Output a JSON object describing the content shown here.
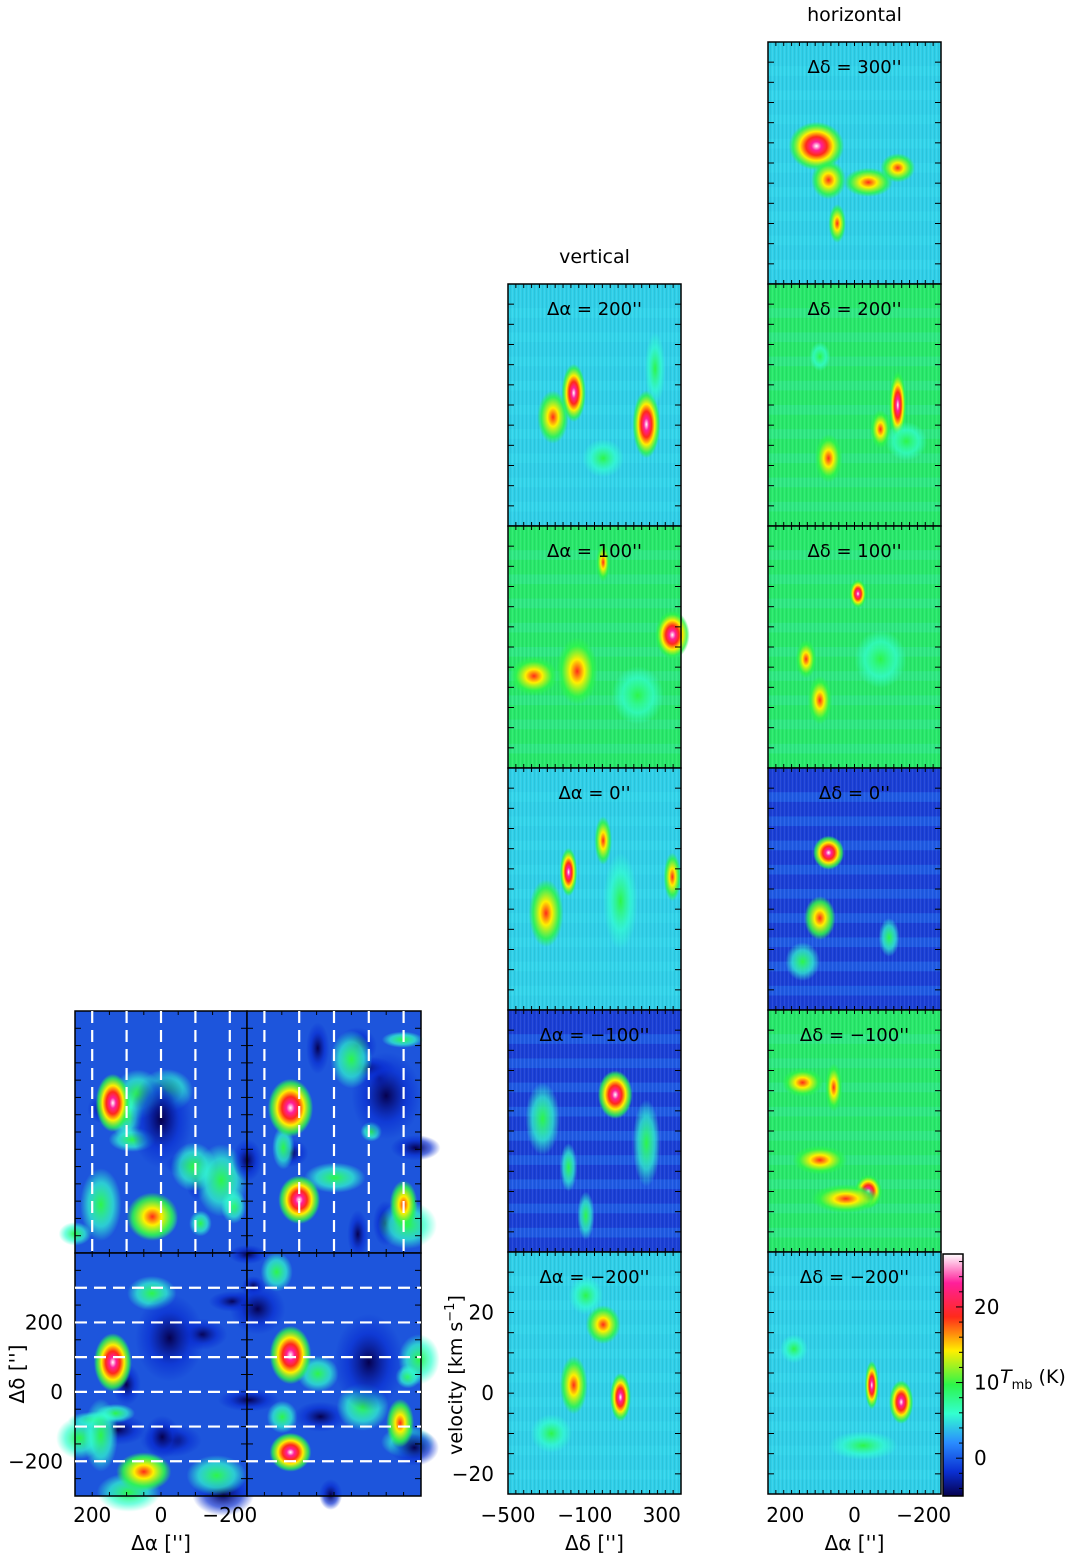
{
  "chart_data": [
    {
      "type": "heatmap",
      "panel_group": "maps",
      "x_label": "Δα ['']",
      "y_label": "Δδ ['']",
      "x_ticks": [
        200,
        0,
        -200
      ],
      "y_ticks": [
        200,
        0,
        -200
      ],
      "x_range": [
        250,
        -250
      ],
      "y_range": [
        -300,
        400
      ],
      "vertical_cuts_dalpha": [
        200,
        100,
        0,
        -100,
        -200
      ],
      "horizontal_cuts_ddelta": [
        300,
        200,
        100,
        0,
        -100,
        -200
      ],
      "tick_labels": {
        "x": [
          "200",
          "0",
          "−200"
        ],
        "y": [
          "200",
          "0",
          "−200"
        ]
      },
      "axis_titles": {
        "x": "Δα ['']",
        "y": "Δδ ['']"
      }
    },
    {
      "type": "heatmap",
      "panel_group": "vertical",
      "title": "vertical",
      "x_label": "Δδ ['']",
      "y_label": "velocity [km s⁻¹]",
      "x_range": [
        -500,
        400
      ],
      "y_range": [
        -25,
        35
      ],
      "x_ticks": [
        "−500",
        "−100",
        "300"
      ],
      "y_ticks": [
        "20",
        "0",
        "−20"
      ],
      "panels": [
        "Δα = 200''",
        "Δα = 100''",
        "Δα = 0''",
        "Δα = −100''",
        "Δα = −200''"
      ]
    },
    {
      "type": "heatmap",
      "panel_group": "horizontal",
      "title": "horizontal",
      "x_label": "Δα ['']",
      "y_label": "velocity [km s⁻¹]",
      "x_range": [
        250,
        -250
      ],
      "y_range": [
        -25,
        35
      ],
      "x_ticks": [
        "200",
        "0",
        "−200"
      ],
      "panels": [
        "Δδ = 300''",
        "Δδ = 200''",
        "Δδ = 100''",
        "Δδ = 0''",
        "Δδ = −100''",
        "Δδ = −200''"
      ]
    },
    {
      "type": "colorbar",
      "label": "T",
      "label_sub": "mb",
      "label_unit": "(K)",
      "range": [
        -5,
        27
      ],
      "ticks": [
        "20",
        "10",
        "0"
      ]
    }
  ],
  "labels": {
    "vertical_title": "vertical",
    "horizontal_title": "horizontal",
    "map_xlabel": "Δα ['']",
    "map_ylabel": "Δδ ['']",
    "pv_xlabel_vertical": "Δδ ['']",
    "pv_xlabel_horizontal": "Δα ['']",
    "pv_ylabel": "velocity [km s",
    "pv_ylabel_exp": "−1",
    "pv_ylabel_end": "]"
  },
  "colors": {
    "colormap": [
      "#06014f",
      "#0a2fd2",
      "#2a8cff",
      "#33ffd0",
      "#2df54a",
      "#ffef00",
      "#ff2a1a",
      "#ff1f9a",
      "#ffffff"
    ]
  }
}
